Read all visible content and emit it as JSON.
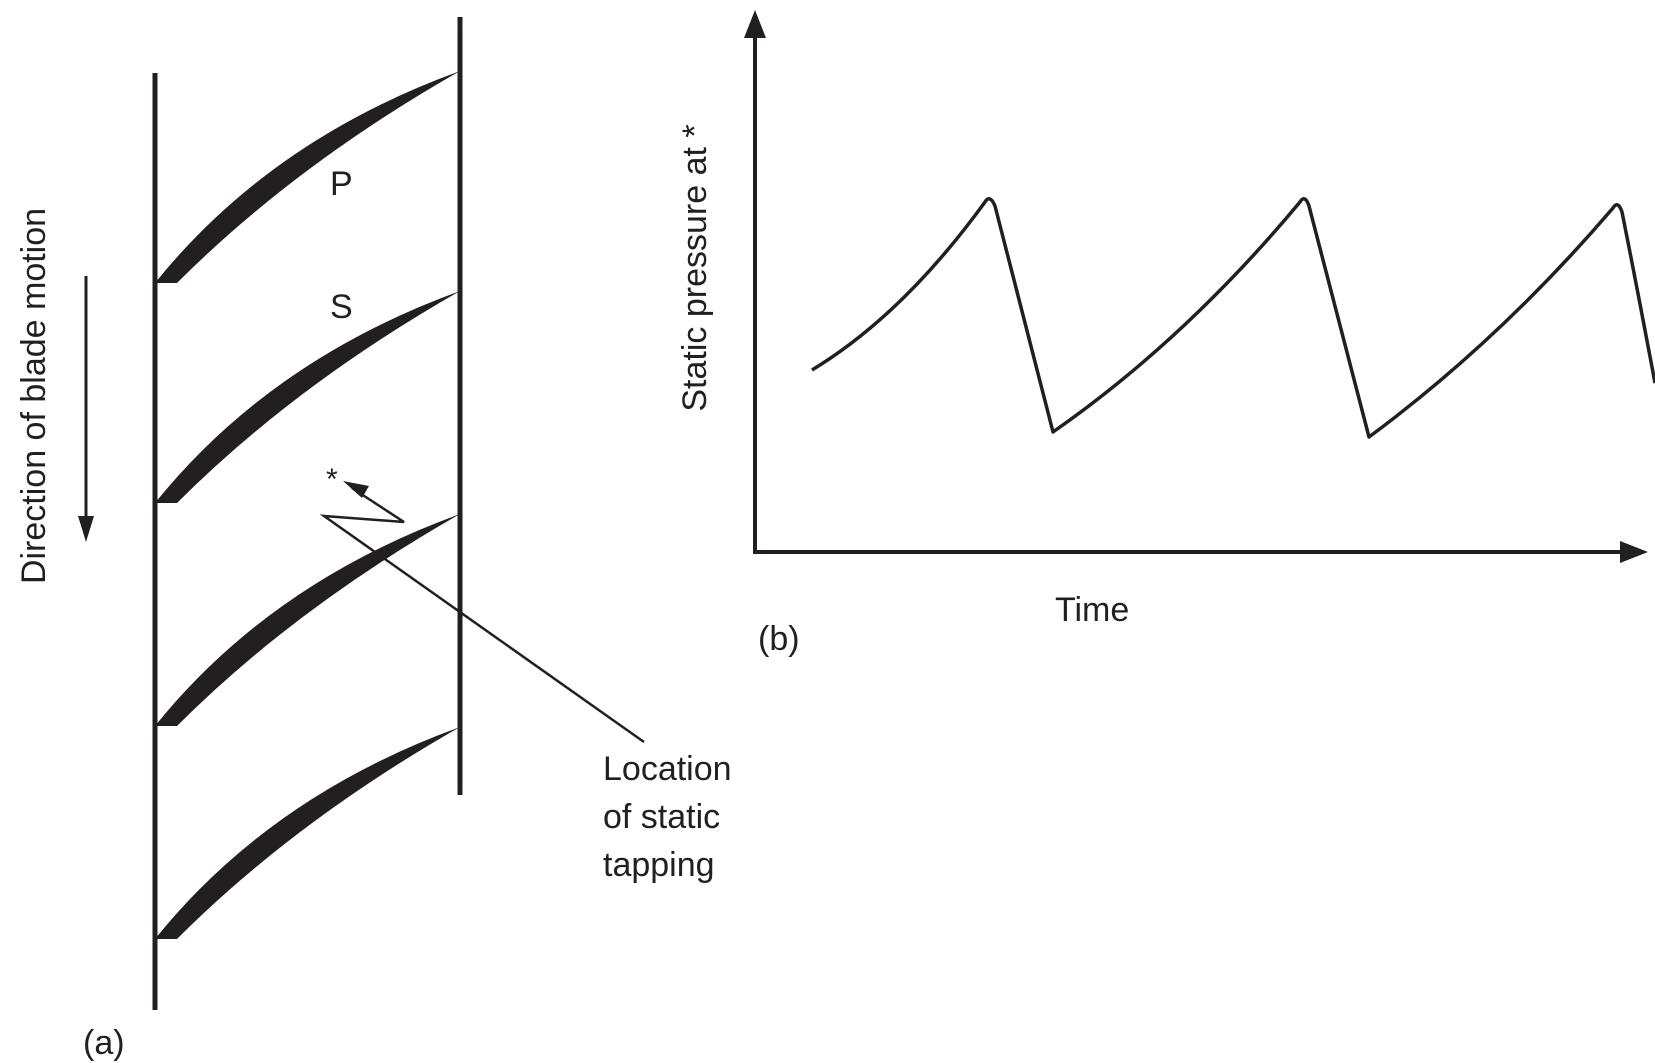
{
  "panel_a": {
    "panel_label": "(a)",
    "direction_label": "Direction of blade motion",
    "pressure_side_label": "P",
    "suction_side_label": "S",
    "tapping_marker": "*",
    "tapping_callout": [
      "Location",
      "of static",
      "tapping"
    ]
  },
  "panel_b": {
    "panel_label": "(b)",
    "y_axis_label": "Static pressure at *",
    "x_axis_label": "Time",
    "waveform": "sawtooth"
  },
  "colors": {
    "ink": "#231f20",
    "background": "#ffffff"
  }
}
